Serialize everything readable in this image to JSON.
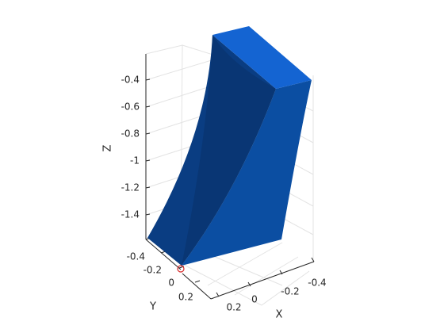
{
  "chart_data": {
    "type": "3d-surface",
    "title": "",
    "grid": true,
    "axes": {
      "x": {
        "label": "X",
        "ticks": [
          "-0.4",
          "-0.2",
          "0",
          "0.2"
        ],
        "direction": "reversed"
      },
      "y": {
        "label": "Y",
        "ticks": [
          "-0.4",
          "-0.2",
          "0",
          "0.2"
        ]
      },
      "z": {
        "label": "Z",
        "ticks": [
          "-0.4",
          "-0.6",
          "-0.8",
          "-1",
          "-1.2",
          "-1.4"
        ],
        "range": [
          -1.55,
          -0.35
        ]
      }
    },
    "solid": {
      "name": "blue-tapered-block",
      "color": "#0b4ea2"
    },
    "marker": {
      "name": "origin-marker",
      "shape": "circle",
      "color": "#d62728",
      "position": [
        0,
        0,
        -1.55
      ]
    }
  }
}
